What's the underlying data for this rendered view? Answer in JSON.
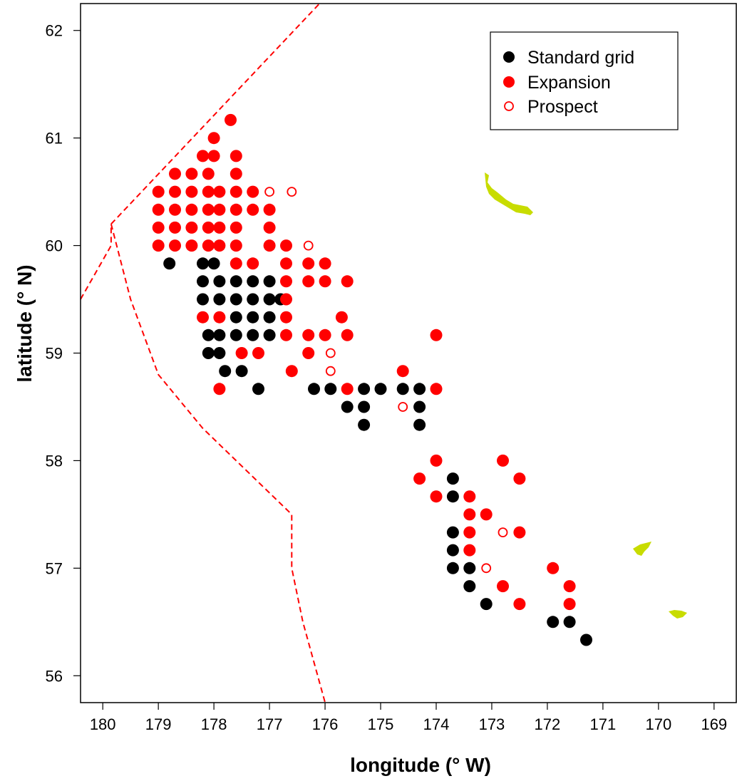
{
  "chart_data": {
    "type": "scatter",
    "title": "",
    "xlabel": "longitude (° W)",
    "ylabel": "latitude (° N)",
    "xlim": [
      180.4,
      168.6
    ],
    "ylim": [
      55.75,
      62.25
    ],
    "x_ticks": [
      "180",
      "179",
      "178",
      "177",
      "176",
      "175",
      "174",
      "173",
      "172",
      "171",
      "170",
      "169"
    ],
    "y_ticks": [
      "56",
      "57",
      "58",
      "59",
      "60",
      "61",
      "62"
    ],
    "grid": false,
    "legend_position": "top-right",
    "colors": {
      "standard": "#000000",
      "expansion": "#ff0000",
      "prospect": "#ff0000",
      "boundary": "#ff0000",
      "land": "#c8dc00"
    },
    "series": [
      {
        "name": "Standard grid",
        "marker": "filled",
        "color": "#000000",
        "points": [
          [
            178.8,
            59.833
          ],
          [
            178.2,
            59.833
          ],
          [
            178.0,
            59.833
          ],
          [
            178.2,
            59.667
          ],
          [
            177.9,
            59.667
          ],
          [
            177.6,
            59.667
          ],
          [
            177.3,
            59.667
          ],
          [
            177.0,
            59.667
          ],
          [
            178.2,
            59.5
          ],
          [
            177.9,
            59.5
          ],
          [
            177.6,
            59.5
          ],
          [
            177.3,
            59.5
          ],
          [
            177.0,
            59.5
          ],
          [
            176.8,
            59.5
          ],
          [
            177.6,
            59.333
          ],
          [
            177.3,
            59.333
          ],
          [
            177.0,
            59.333
          ],
          [
            178.1,
            59.167
          ],
          [
            177.9,
            59.167
          ],
          [
            177.6,
            59.167
          ],
          [
            177.3,
            59.167
          ],
          [
            177.0,
            59.167
          ],
          [
            178.1,
            59.0
          ],
          [
            177.9,
            59.0
          ],
          [
            177.8,
            58.833
          ],
          [
            177.5,
            58.833
          ],
          [
            177.2,
            58.667
          ],
          [
            176.2,
            58.667
          ],
          [
            175.9,
            58.667
          ],
          [
            175.3,
            58.667
          ],
          [
            175.0,
            58.667
          ],
          [
            174.6,
            58.667
          ],
          [
            174.3,
            58.667
          ],
          [
            175.6,
            58.5
          ],
          [
            175.3,
            58.5
          ],
          [
            174.3,
            58.5
          ],
          [
            175.3,
            58.333
          ],
          [
            174.3,
            58.333
          ],
          [
            173.7,
            57.833
          ],
          [
            173.7,
            57.667
          ],
          [
            173.7,
            57.333
          ],
          [
            173.7,
            57.167
          ],
          [
            173.7,
            57.0
          ],
          [
            173.4,
            57.0
          ],
          [
            173.4,
            56.833
          ],
          [
            173.1,
            56.667
          ],
          [
            171.9,
            56.5
          ],
          [
            171.6,
            56.5
          ],
          [
            171.3,
            56.333
          ]
        ]
      },
      {
        "name": "Expansion",
        "marker": "filled",
        "color": "#ff0000",
        "points": [
          [
            177.7,
            61.167
          ],
          [
            178.0,
            61.0
          ],
          [
            178.2,
            60.833
          ],
          [
            178.0,
            60.833
          ],
          [
            177.6,
            60.833
          ],
          [
            178.7,
            60.667
          ],
          [
            178.4,
            60.667
          ],
          [
            178.1,
            60.667
          ],
          [
            177.6,
            60.667
          ],
          [
            179.0,
            60.5
          ],
          [
            178.7,
            60.5
          ],
          [
            178.4,
            60.5
          ],
          [
            178.1,
            60.5
          ],
          [
            177.9,
            60.5
          ],
          [
            177.6,
            60.5
          ],
          [
            177.3,
            60.5
          ],
          [
            179.0,
            60.333
          ],
          [
            178.7,
            60.333
          ],
          [
            178.4,
            60.333
          ],
          [
            178.1,
            60.333
          ],
          [
            177.9,
            60.333
          ],
          [
            177.6,
            60.333
          ],
          [
            177.3,
            60.333
          ],
          [
            177.0,
            60.333
          ],
          [
            179.0,
            60.167
          ],
          [
            178.7,
            60.167
          ],
          [
            178.4,
            60.167
          ],
          [
            178.1,
            60.167
          ],
          [
            177.9,
            60.167
          ],
          [
            177.6,
            60.167
          ],
          [
            177.0,
            60.167
          ],
          [
            179.0,
            60.0
          ],
          [
            178.7,
            60.0
          ],
          [
            178.4,
            60.0
          ],
          [
            178.1,
            60.0
          ],
          [
            177.9,
            60.0
          ],
          [
            177.6,
            60.0
          ],
          [
            177.0,
            60.0
          ],
          [
            176.7,
            60.0
          ],
          [
            177.6,
            59.833
          ],
          [
            177.3,
            59.833
          ],
          [
            176.7,
            59.833
          ],
          [
            176.3,
            59.833
          ],
          [
            176.0,
            59.833
          ],
          [
            176.7,
            59.667
          ],
          [
            176.3,
            59.667
          ],
          [
            176.0,
            59.667
          ],
          [
            175.6,
            59.667
          ],
          [
            176.7,
            59.5
          ],
          [
            178.2,
            59.333
          ],
          [
            177.9,
            59.333
          ],
          [
            176.7,
            59.333
          ],
          [
            175.7,
            59.333
          ],
          [
            176.7,
            59.167
          ],
          [
            176.3,
            59.167
          ],
          [
            176.0,
            59.167
          ],
          [
            175.6,
            59.167
          ],
          [
            174.0,
            59.167
          ],
          [
            177.5,
            59.0
          ],
          [
            177.2,
            59.0
          ],
          [
            176.3,
            59.0
          ],
          [
            176.6,
            58.833
          ],
          [
            174.6,
            58.833
          ],
          [
            177.9,
            58.667
          ],
          [
            175.6,
            58.667
          ],
          [
            174.0,
            58.667
          ],
          [
            174.0,
            58.0
          ],
          [
            172.8,
            58.0
          ],
          [
            174.3,
            57.833
          ],
          [
            172.5,
            57.833
          ],
          [
            174.0,
            57.667
          ],
          [
            173.4,
            57.667
          ],
          [
            173.4,
            57.5
          ],
          [
            173.1,
            57.5
          ],
          [
            173.4,
            57.333
          ],
          [
            172.5,
            57.333
          ],
          [
            173.4,
            57.167
          ],
          [
            171.9,
            57.0
          ],
          [
            172.8,
            56.833
          ],
          [
            171.6,
            56.833
          ],
          [
            172.5,
            56.667
          ],
          [
            171.6,
            56.667
          ]
        ]
      },
      {
        "name": "Prospect",
        "marker": "open",
        "color": "#ff0000",
        "points": [
          [
            177.0,
            60.5
          ],
          [
            176.6,
            60.5
          ],
          [
            176.3,
            60.0
          ],
          [
            175.9,
            59.0
          ],
          [
            175.9,
            58.833
          ],
          [
            174.6,
            58.5
          ],
          [
            172.8,
            57.333
          ],
          [
            173.1,
            57.0
          ]
        ]
      }
    ],
    "boundaries": [
      [
        [
          180.4,
          59.5
        ],
        [
          179.85,
          60.0
        ],
        [
          179.85,
          60.2
        ],
        [
          176.1,
          62.25
        ]
      ],
      [
        [
          179.85,
          60.2
        ],
        [
          179.5,
          59.5
        ],
        [
          179.0,
          58.8
        ],
        [
          178.2,
          58.3
        ],
        [
          177.2,
          57.8
        ],
        [
          176.6,
          57.5
        ],
        [
          176.6,
          57.0
        ],
        [
          176.4,
          56.5
        ],
        [
          176.0,
          55.75
        ]
      ]
    ]
  }
}
